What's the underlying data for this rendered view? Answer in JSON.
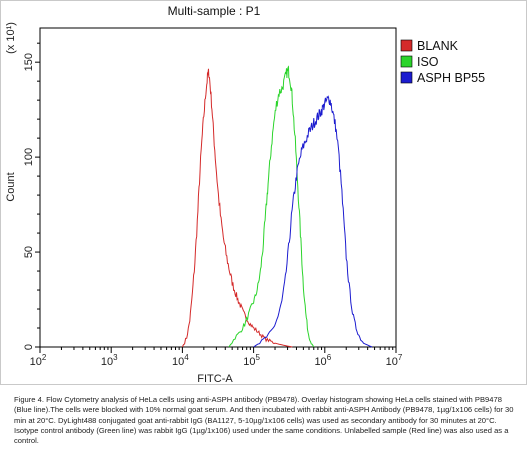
{
  "chart_data": {
    "type": "line",
    "title": "Multi-sample : P1",
    "xlabel": "FITC-A",
    "ylabel": "Count",
    "y_multiplier_label": "(x 10¹)",
    "x_scale": "log",
    "xlim": [
      100,
      10000000
    ],
    "ylim": [
      0,
      168
    ],
    "x_ticks": [
      {
        "value": 100,
        "base": "10",
        "exp": "2"
      },
      {
        "value": 1000,
        "base": "10",
        "exp": "3"
      },
      {
        "value": 10000,
        "base": "10",
        "exp": "4"
      },
      {
        "value": 100000,
        "base": "10",
        "exp": "5"
      },
      {
        "value": 1000000,
        "base": "10",
        "exp": "6"
      },
      {
        "value": 10000000,
        "base": "10",
        "exp": "7"
      }
    ],
    "y_ticks": [
      {
        "value": 0,
        "label": "0"
      },
      {
        "value": 50,
        "label": "50"
      },
      {
        "value": 100,
        "label": "100"
      },
      {
        "value": 150,
        "label": "150"
      }
    ],
    "legend_position": "top-right",
    "series": [
      {
        "name": "BLANK",
        "color": "#d42a2a",
        "points": [
          [
            10000,
            0
          ],
          [
            11500,
            5
          ],
          [
            12700,
            14
          ],
          [
            13800,
            28
          ],
          [
            15000,
            45
          ],
          [
            16200,
            66
          ],
          [
            17400,
            88
          ],
          [
            18700,
            108
          ],
          [
            20000,
            122
          ],
          [
            21400,
            135
          ],
          [
            22500,
            142
          ],
          [
            23500,
            145
          ],
          [
            24500,
            138
          ],
          [
            26000,
            126
          ],
          [
            27500,
            112
          ],
          [
            29500,
            96
          ],
          [
            32000,
            80
          ],
          [
            35000,
            66
          ],
          [
            38500,
            55
          ],
          [
            42000,
            47
          ],
          [
            46000,
            40
          ],
          [
            50000,
            34
          ],
          [
            55000,
            29
          ],
          [
            60000,
            25
          ],
          [
            65000,
            22
          ],
          [
            72000,
            18
          ],
          [
            80000,
            15
          ],
          [
            90000,
            12
          ],
          [
            100000,
            10
          ],
          [
            115000,
            8
          ],
          [
            130000,
            6
          ],
          [
            150000,
            4
          ],
          [
            175000,
            3
          ],
          [
            200000,
            2
          ],
          [
            260000,
            1
          ],
          [
            350000,
            0
          ]
        ]
      },
      {
        "name": "ISO",
        "color": "#2bd42b",
        "points": [
          [
            45000,
            0
          ],
          [
            55000,
            5
          ],
          [
            65000,
            8
          ],
          [
            75000,
            12
          ],
          [
            85000,
            17
          ],
          [
            95000,
            22
          ],
          [
            105000,
            26
          ],
          [
            115000,
            32
          ],
          [
            125000,
            40
          ],
          [
            135000,
            52
          ],
          [
            145000,
            66
          ],
          [
            155000,
            80
          ],
          [
            165000,
            92
          ],
          [
            178000,
            106
          ],
          [
            192000,
            118
          ],
          [
            210000,
            128
          ],
          [
            228000,
            134
          ],
          [
            250000,
            136
          ],
          [
            270000,
            140
          ],
          [
            290000,
            144
          ],
          [
            305000,
            146
          ],
          [
            320000,
            143
          ],
          [
            340000,
            136
          ],
          [
            360000,
            124
          ],
          [
            385000,
            108
          ],
          [
            410000,
            90
          ],
          [
            440000,
            70
          ],
          [
            470000,
            50
          ],
          [
            500000,
            32
          ],
          [
            540000,
            18
          ],
          [
            580000,
            8
          ],
          [
            630000,
            3
          ],
          [
            700000,
            0
          ]
        ]
      },
      {
        "name": "ASPH BP55",
        "color": "#1c1ccf",
        "points": [
          [
            100000,
            0
          ],
          [
            130000,
            3
          ],
          [
            160000,
            6
          ],
          [
            190000,
            10
          ],
          [
            220000,
            16
          ],
          [
            250000,
            24
          ],
          [
            280000,
            36
          ],
          [
            310000,
            52
          ],
          [
            340000,
            68
          ],
          [
            370000,
            80
          ],
          [
            400000,
            90
          ],
          [
            440000,
            98
          ],
          [
            480000,
            104
          ],
          [
            530000,
            108
          ],
          [
            580000,
            112
          ],
          [
            640000,
            115
          ],
          [
            700000,
            118
          ],
          [
            760000,
            120
          ],
          [
            820000,
            122
          ],
          [
            880000,
            124
          ],
          [
            940000,
            126
          ],
          [
            1000000,
            128
          ],
          [
            1080000,
            130
          ],
          [
            1150000,
            131
          ],
          [
            1230000,
            128
          ],
          [
            1320000,
            122
          ],
          [
            1420000,
            116
          ],
          [
            1550000,
            104
          ],
          [
            1700000,
            86
          ],
          [
            1850000,
            66
          ],
          [
            2000000,
            48
          ],
          [
            2200000,
            32
          ],
          [
            2450000,
            18
          ],
          [
            2750000,
            10
          ],
          [
            3100000,
            5
          ],
          [
            3500000,
            2
          ],
          [
            4000000,
            1
          ],
          [
            4600000,
            0
          ]
        ]
      }
    ]
  },
  "caption": "Figure 4. Flow Cytometry analysis of HeLa cells using anti-ASPH antibody (PB9478). Overlay histogram showing HeLa cells stained with PB9478 (Blue line).The cells were blocked with 10% normal goat serum. And then incubated with rabbit anti-ASPH Antibody (PB9478, 1µg/1x106 cells) for 30 min at 20°C. DyLight488 conjugated goat anti-rabbit IgG (BA1127, 5-10µg/1x106 cells) was used as secondary antibody for 30 minutes at 20°C. Isotype control antibody (Green line) was rabbit IgG (1µg/1x106) used under the same conditions. Unlabelled sample (Red line) was also used as a control."
}
